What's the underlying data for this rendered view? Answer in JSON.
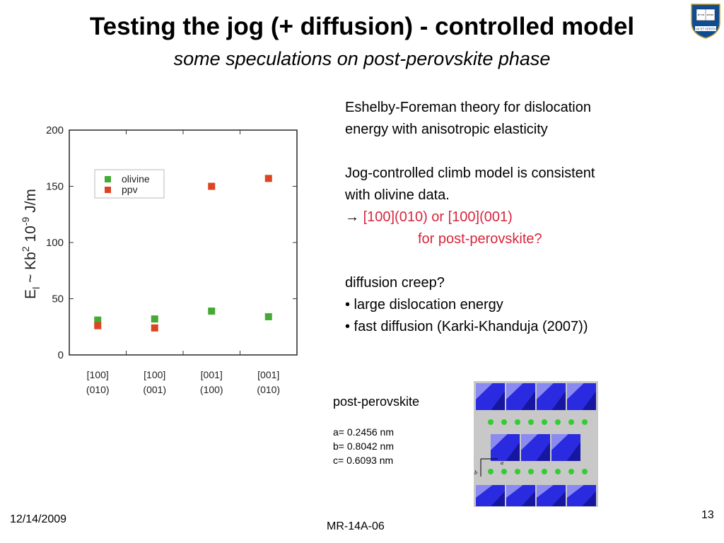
{
  "slide": {
    "title": "Testing the jog (+ diffusion) - controlled model",
    "subtitle": "some speculations on post-perovskite phase",
    "logo": {
      "icon": "yale-shield-icon",
      "book_text": [
        "אורים",
        "ותמים"
      ],
      "motto": "LUX ET VERITAS",
      "colors": {
        "shield": "#0f4d92",
        "book": "#ffffff"
      }
    }
  },
  "body": {
    "para1": [
      "Eshelby-Foreman theory for dislocation",
      "energy with anisotropic elasticity"
    ],
    "para2": [
      "Jog-controlled climb model is consistent",
      "with olivine data."
    ],
    "arrow": "→",
    "highlight1": "[100](010) or [100](001)",
    "highlight2": "for post-perovskite?",
    "para3_title": "diffusion creep?",
    "bullets": [
      "• large dislocation energy",
      "• fast diffusion (Karki-Khanduja (2007))"
    ],
    "highlight_color": "#d7263d"
  },
  "structure": {
    "label": "post-perovskite",
    "params": [
      "a= 0.2456 nm",
      "b= 0.8042 nm",
      "c= 0.6093 nm"
    ],
    "axis_a": "a",
    "axis_b": "b",
    "colors": {
      "octahedra": "#2a2ae0",
      "atoms": "#33cc33",
      "background": "#c8c8c8"
    }
  },
  "footer": {
    "date": "12/14/2009",
    "code": "MR-14A-06",
    "page": "13"
  },
  "chart_data": {
    "type": "scatter",
    "categories": [
      "[100]\n(010)",
      "[100]\n(001)",
      "[001]\n(100)",
      "[001]\n(010)"
    ],
    "category_lines": [
      [
        "[100]",
        "(010)"
      ],
      [
        "[100]",
        "(001)"
      ],
      [
        "[001]",
        "(100)"
      ],
      [
        "[001]",
        "(010)"
      ]
    ],
    "series": [
      {
        "name": "olivine",
        "color": "#44aa33",
        "values": [
          31,
          32,
          39,
          34
        ]
      },
      {
        "name": "ppv",
        "color": "#dd4422",
        "values": [
          26,
          24,
          150,
          157
        ]
      }
    ],
    "ylabel": "E_l ~ Kb^2  10^-9  J/m",
    "ylabel_parts": {
      "base": "E",
      "sub": "l",
      "mid": " ~ Kb",
      "sup1": "2",
      "sp": "  10",
      "sup2": "-9",
      "unit": "  J/m"
    },
    "ylim": [
      0,
      200
    ],
    "yticks": [
      0,
      50,
      100,
      150,
      200
    ],
    "legend_position": "top-left"
  }
}
